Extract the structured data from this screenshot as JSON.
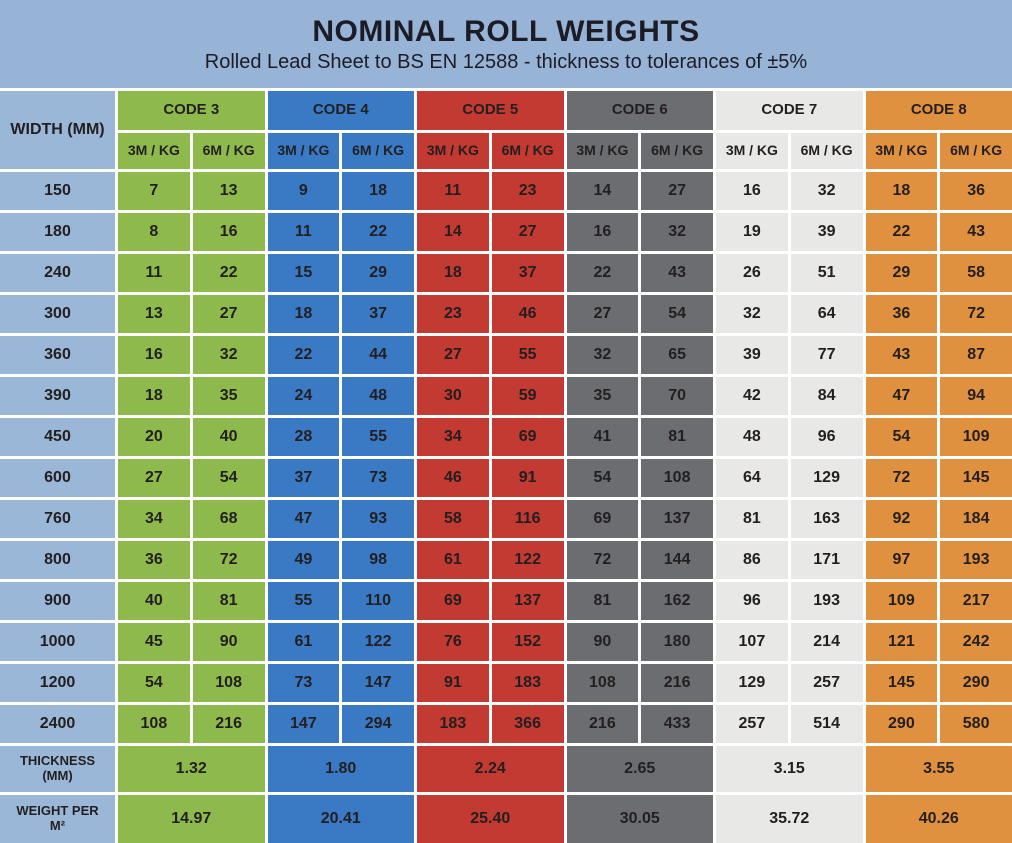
{
  "header": {
    "title": "NOMINAL ROLL WEIGHTS",
    "subtitle": "Rolled Lead Sheet to BS EN 12588 - thickness to tolerances of ±5%"
  },
  "colors": {
    "banner": "#97b4d6",
    "width_col": "#9ab7d8",
    "grid_lines": "#ffffff",
    "text": "#231f20",
    "title_text": "#1c1c26",
    "code3": "#8eba4d",
    "code4": "#3a7ac4",
    "code5": "#c23a31",
    "code6": "#6c6d70",
    "code7": "#e8e8e6",
    "code8": "#e0913f"
  },
  "chart_data": {
    "type": "table",
    "title": "NOMINAL ROLL WEIGHTS",
    "subtitle": "Rolled Lead Sheet to BS EN 12588 - thickness to tolerances of ±5%",
    "width_header": "WIDTH (MM)",
    "subheaders": [
      "3M / KG",
      "6M / KG"
    ],
    "codes": [
      {
        "label": "CODE 3",
        "color": "#8eba4d",
        "thickness_mm": "1.32",
        "weight_per_m2": "14.97"
      },
      {
        "label": "CODE 4",
        "color": "#3a7ac4",
        "thickness_mm": "1.80",
        "weight_per_m2": "20.41"
      },
      {
        "label": "CODE 5",
        "color": "#c23a31",
        "thickness_mm": "2.24",
        "weight_per_m2": "25.40"
      },
      {
        "label": "CODE 6",
        "color": "#6c6d70",
        "thickness_mm": "2.65",
        "weight_per_m2": "30.05"
      },
      {
        "label": "CODE 7",
        "color": "#e8e8e6",
        "thickness_mm": "3.15",
        "weight_per_m2": "35.72"
      },
      {
        "label": "CODE 8",
        "color": "#e0913f",
        "thickness_mm": "3.55",
        "weight_per_m2": "40.26"
      }
    ],
    "rows": [
      {
        "width_mm": "150",
        "values": [
          7,
          13,
          9,
          18,
          11,
          23,
          14,
          27,
          16,
          32,
          18,
          36
        ]
      },
      {
        "width_mm": "180",
        "values": [
          8,
          16,
          11,
          22,
          14,
          27,
          16,
          32,
          19,
          39,
          22,
          43
        ]
      },
      {
        "width_mm": "240",
        "values": [
          11,
          22,
          15,
          29,
          18,
          37,
          22,
          43,
          26,
          51,
          29,
          58
        ]
      },
      {
        "width_mm": "300",
        "values": [
          13,
          27,
          18,
          37,
          23,
          46,
          27,
          54,
          32,
          64,
          36,
          72
        ]
      },
      {
        "width_mm": "360",
        "values": [
          16,
          32,
          22,
          44,
          27,
          55,
          32,
          65,
          39,
          77,
          43,
          87
        ]
      },
      {
        "width_mm": "390",
        "values": [
          18,
          35,
          24,
          48,
          30,
          59,
          35,
          70,
          42,
          84,
          47,
          94
        ]
      },
      {
        "width_mm": "450",
        "values": [
          20,
          40,
          28,
          55,
          34,
          69,
          41,
          81,
          48,
          96,
          54,
          109
        ]
      },
      {
        "width_mm": "600",
        "values": [
          27,
          54,
          37,
          73,
          46,
          91,
          54,
          108,
          64,
          129,
          72,
          145
        ]
      },
      {
        "width_mm": "760",
        "values": [
          34,
          68,
          47,
          93,
          58,
          116,
          69,
          137,
          81,
          163,
          92,
          184
        ]
      },
      {
        "width_mm": "800",
        "values": [
          36,
          72,
          49,
          98,
          61,
          122,
          72,
          144,
          86,
          171,
          97,
          193
        ]
      },
      {
        "width_mm": "900",
        "values": [
          40,
          81,
          55,
          110,
          69,
          137,
          81,
          162,
          96,
          193,
          109,
          217
        ]
      },
      {
        "width_mm": "1000",
        "values": [
          45,
          90,
          61,
          122,
          76,
          152,
          90,
          180,
          107,
          214,
          121,
          242
        ]
      },
      {
        "width_mm": "1200",
        "values": [
          54,
          108,
          73,
          147,
          91,
          183,
          108,
          216,
          129,
          257,
          145,
          290
        ]
      },
      {
        "width_mm": "2400",
        "values": [
          108,
          216,
          147,
          294,
          183,
          366,
          216,
          433,
          257,
          514,
          290,
          580
        ]
      }
    ],
    "footer_rows": [
      {
        "label": "THICKNESS (MM)",
        "values": [
          "1.32",
          "1.80",
          "2.24",
          "2.65",
          "3.15",
          "3.55"
        ]
      },
      {
        "label": "WEIGHT PER M²",
        "values": [
          "14.97",
          "20.41",
          "25.40",
          "30.05",
          "35.72",
          "40.26"
        ]
      }
    ]
  }
}
